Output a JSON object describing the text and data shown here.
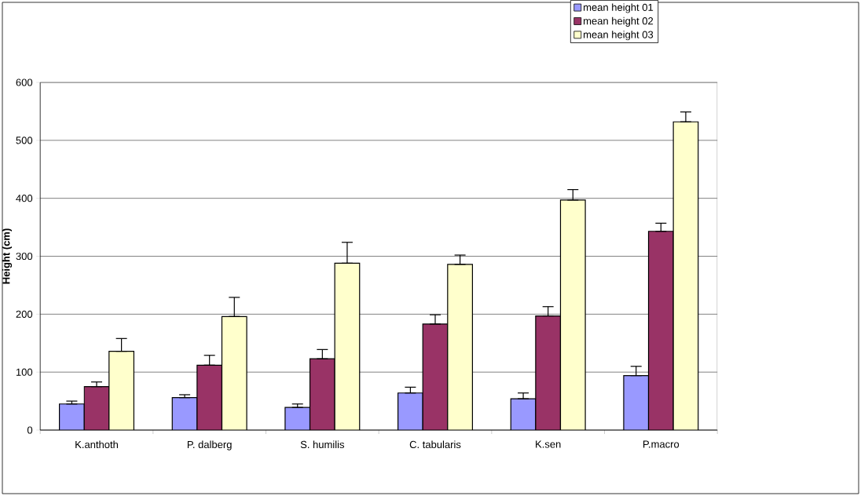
{
  "chart_data": {
    "type": "bar",
    "ylabel": "Height (cm)",
    "categories": [
      "K.anthoth",
      "P. dalberg",
      "S. humilis",
      "C. tabularis",
      "K.sen",
      "P.macro"
    ],
    "series": [
      {
        "name": "mean height 01",
        "color": "#9999ff",
        "values": [
          45,
          56,
          39,
          64,
          54,
          94
        ],
        "errors": [
          [
            45,
            50
          ],
          [
            56,
            61
          ],
          [
            39,
            45
          ],
          [
            64,
            74
          ],
          [
            54,
            64
          ],
          [
            94,
            110
          ]
        ]
      },
      {
        "name": "mean height 02",
        "color": "#993366",
        "values": [
          75,
          112,
          123,
          183,
          197,
          343
        ],
        "errors": [
          [
            75,
            83
          ],
          [
            112,
            129
          ],
          [
            123,
            139
          ],
          [
            183,
            199
          ],
          [
            197,
            213
          ],
          [
            343,
            357
          ]
        ]
      },
      {
        "name": "mean height 03",
        "color": "#ffffcc",
        "values": [
          136,
          196,
          288,
          286,
          397,
          532
        ],
        "errors": [
          [
            136,
            158
          ],
          [
            196,
            229
          ],
          [
            288,
            324
          ],
          [
            286,
            302
          ],
          [
            397,
            415
          ],
          [
            532,
            549
          ]
        ]
      }
    ],
    "ylim": [
      0,
      600
    ],
    "yticks": [
      0,
      100,
      200,
      300,
      400,
      500,
      600
    ],
    "grid": "y",
    "legend": "top right"
  }
}
